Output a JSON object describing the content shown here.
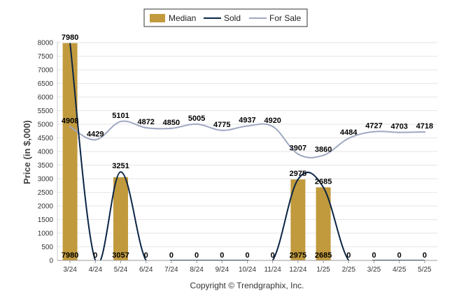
{
  "chart_data": {
    "type": "bar",
    "ylabel": "Price (in $,000)",
    "ylim": [
      0,
      8000
    ],
    "yticks": [
      0,
      500,
      1000,
      1500,
      2000,
      2500,
      3000,
      3500,
      4000,
      4500,
      5000,
      5500,
      6000,
      6500,
      7000,
      7500,
      8000
    ],
    "categories": [
      "3/24",
      "4/24",
      "5/24",
      "6/24",
      "7/24",
      "8/24",
      "9/24",
      "10/24",
      "11/24",
      "12/24",
      "1/25",
      "2/25",
      "3/25",
      "4/25",
      "5/25"
    ],
    "grid": true,
    "legend_position": "top-center",
    "series": [
      {
        "name": "Median",
        "type": "bar",
        "color": "#C19A3E",
        "values": [
          7980,
          0,
          3057,
          0,
          0,
          0,
          0,
          0,
          0,
          2975,
          2685,
          0,
          0,
          0,
          0
        ]
      },
      {
        "name": "Sold",
        "type": "line",
        "color": "#0B2545",
        "values": [
          7980,
          0,
          3251,
          0,
          0,
          0,
          0,
          0,
          0,
          2975,
          2685,
          0,
          0,
          0,
          0
        ]
      },
      {
        "name": "For Sale",
        "type": "line",
        "color": "#9FA8C2",
        "values": [
          4908,
          4429,
          5101,
          4872,
          4850,
          5005,
          4775,
          4937,
          4920,
          3907,
          3860,
          4484,
          4727,
          4703,
          4718
        ]
      }
    ]
  },
  "footer": {
    "copyright": "Copyright © Trendgraphix, Inc."
  }
}
